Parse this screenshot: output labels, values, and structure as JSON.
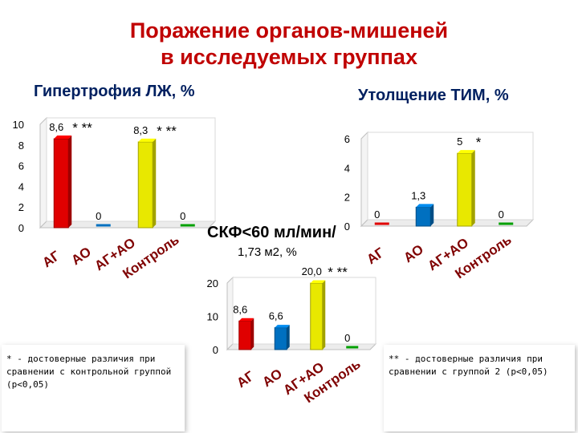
{
  "slide": {
    "title_line1": "Поражение органов-мишеней",
    "title_line2": "в исследуемых группах",
    "subtitle_line1": "СКФ<60 мл/мин/",
    "subtitle_line2": "1,73 м2, %",
    "note_star": "* - достоверные различия при сравнении с контрольной группой (р<0,05)",
    "note_dstar": "** - достоверные различия при сравнении с группой 2 (р<0,05)"
  },
  "colors": {
    "red": "#e00000",
    "blue": "#0070c0",
    "yellow": "#e8e800",
    "green": "#00a000",
    "title": "#c00000",
    "chart_title": "#002060",
    "category": "#7f0000"
  },
  "chart_data": [
    {
      "type": "bar",
      "title": "Гипертрофия ЛЖ, %",
      "categories": [
        "АГ",
        "АО",
        "АГ+АО",
        "Контроль"
      ],
      "values": [
        8.6,
        0,
        8.3,
        0
      ],
      "data_labels": [
        "8,6",
        "0",
        "8,3",
        "0"
      ],
      "annotations": [
        "* **",
        "",
        "* **",
        ""
      ],
      "colors": [
        "red",
        "blue",
        "yellow",
        "green"
      ],
      "yticks": [
        "0",
        "2",
        "4",
        "6",
        "8",
        "10"
      ],
      "ylim": [
        0,
        10
      ],
      "grid": false
    },
    {
      "type": "bar",
      "title": "Утолщение ТИМ, %",
      "categories": [
        "АГ",
        "АО",
        "АГ+АО",
        "Контроль"
      ],
      "values": [
        0,
        1.3,
        5,
        0
      ],
      "data_labels": [
        "0",
        "1,3",
        "5",
        "0"
      ],
      "annotations": [
        "",
        "",
        "*",
        ""
      ],
      "colors": [
        "red",
        "blue",
        "yellow",
        "green"
      ],
      "yticks": [
        "0",
        "2",
        "4",
        "6"
      ],
      "ylim": [
        0,
        6
      ],
      "grid": false
    },
    {
      "type": "bar",
      "title": "",
      "categories": [
        "АГ",
        "АО",
        "АГ+АО",
        "Контроль"
      ],
      "values": [
        8.6,
        6.6,
        20.0,
        0
      ],
      "data_labels": [
        "8,6",
        "6,6",
        "20,0",
        "0"
      ],
      "annotations": [
        "",
        "",
        "* **",
        ""
      ],
      "colors": [
        "red",
        "blue",
        "yellow",
        "green"
      ],
      "yticks": [
        "0",
        "10",
        "20"
      ],
      "ylim": [
        0,
        20
      ],
      "grid": false
    }
  ]
}
